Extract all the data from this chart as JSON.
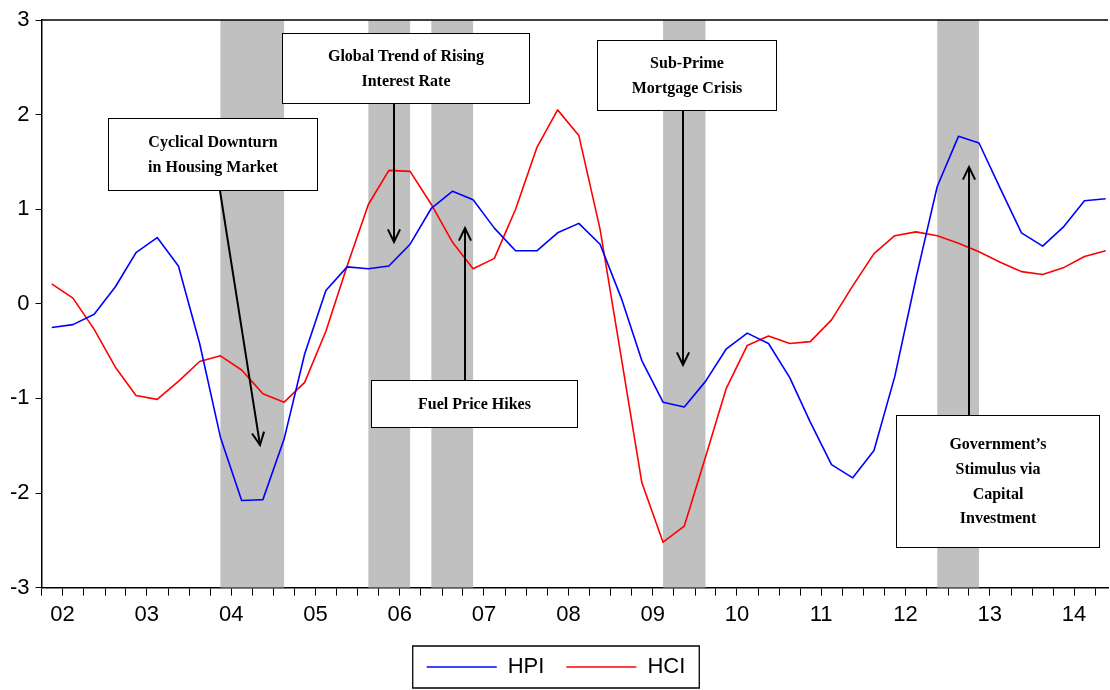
{
  "chart_data": {
    "type": "line",
    "legend": "bottom",
    "grid": false,
    "marker": "none",
    "line_style": "solid",
    "x": [
      "2002-05-15",
      "2002-08-15",
      "2002-11-15",
      "2003-02-15",
      "2003-05-15",
      "2003-08-15",
      "2003-11-15",
      "2004-02-15",
      "2004-05-15",
      "2004-08-15",
      "2004-11-15",
      "2005-02-15",
      "2005-05-15",
      "2005-08-15",
      "2005-11-15",
      "2006-02-15",
      "2006-05-15",
      "2006-08-15",
      "2006-11-15",
      "2007-02-15",
      "2007-05-15",
      "2007-08-15",
      "2007-11-15",
      "2008-02-15",
      "2008-05-15",
      "2008-08-15",
      "2008-11-15",
      "2009-02-15",
      "2009-05-15",
      "2009-08-15",
      "2009-11-15",
      "2010-02-15",
      "2010-05-15",
      "2010-08-15",
      "2010-11-15",
      "2011-02-15",
      "2011-05-15",
      "2011-08-15",
      "2011-11-15",
      "2012-02-15",
      "2012-05-15",
      "2012-08-15",
      "2012-11-15",
      "2013-02-15",
      "2013-05-15",
      "2013-08-15",
      "2013-11-15",
      "2014-02-15",
      "2014-05-15",
      "2014-08-15",
      "2014-11-15"
    ],
    "series": [
      {
        "name": "HPI",
        "color": "#0000ff",
        "values": [
          -0.25,
          -0.22,
          -0.11,
          0.18,
          0.54,
          0.7,
          0.4,
          -0.42,
          -1.41,
          -2.08,
          -2.07,
          -1.43,
          -0.53,
          0.14,
          0.39,
          0.37,
          0.4,
          0.63,
          1.01,
          1.19,
          1.1,
          0.8,
          0.56,
          0.56,
          0.75,
          0.85,
          0.63,
          0.06,
          -0.6,
          -1.04,
          -1.09,
          -0.82,
          -0.48,
          -0.31,
          -0.42,
          -0.78,
          -1.25,
          -1.7,
          -1.84,
          -1.55,
          -0.77,
          0.27,
          1.24,
          1.77,
          1.7,
          1.22,
          0.75,
          0.61,
          0.81,
          1.09,
          1.11
        ]
      },
      {
        "name": "HCI",
        "color": "#ff0000",
        "values": [
          0.21,
          0.06,
          -0.27,
          -0.67,
          -0.97,
          -1.01,
          -0.82,
          -0.61,
          -0.55,
          -0.7,
          -0.95,
          -1.04,
          -0.83,
          -0.29,
          0.4,
          1.05,
          1.41,
          1.4,
          1.05,
          0.65,
          0.37,
          0.48,
          1.0,
          1.65,
          2.05,
          1.78,
          0.79,
          -0.57,
          -1.89,
          -2.52,
          -2.35,
          -1.62,
          -0.9,
          -0.44,
          -0.34,
          -0.42,
          -0.4,
          -0.17,
          0.19,
          0.53,
          0.72,
          0.76,
          0.72,
          0.64,
          0.55,
          0.44,
          0.34,
          0.31,
          0.38,
          0.5,
          0.56
        ]
      }
    ],
    "xlim": [
      "2002-04-01",
      "2014-11-25"
    ],
    "xticks": [
      {
        "value": "2002-04-01",
        "label": null
      },
      {
        "value": "2002-07-01",
        "label": "02"
      },
      {
        "value": "2002-10-01",
        "label": null
      },
      {
        "value": "2003-01-01",
        "label": null
      },
      {
        "value": "2003-04-01",
        "label": null
      },
      {
        "value": "2003-07-01",
        "label": "03"
      },
      {
        "value": "2003-10-01",
        "label": null
      },
      {
        "value": "2004-01-01",
        "label": null
      },
      {
        "value": "2004-04-01",
        "label": null
      },
      {
        "value": "2004-07-01",
        "label": "04"
      },
      {
        "value": "2004-10-01",
        "label": null
      },
      {
        "value": "2005-01-01",
        "label": null
      },
      {
        "value": "2005-04-01",
        "label": null
      },
      {
        "value": "2005-07-01",
        "label": "05"
      },
      {
        "value": "2005-10-01",
        "label": null
      },
      {
        "value": "2006-01-01",
        "label": null
      },
      {
        "value": "2006-04-01",
        "label": null
      },
      {
        "value": "2006-07-01",
        "label": "06"
      },
      {
        "value": "2006-10-01",
        "label": null
      },
      {
        "value": "2007-01-01",
        "label": null
      },
      {
        "value": "2007-04-01",
        "label": null
      },
      {
        "value": "2007-07-01",
        "label": "07"
      },
      {
        "value": "2007-10-01",
        "label": null
      },
      {
        "value": "2008-01-01",
        "label": null
      },
      {
        "value": "2008-04-01",
        "label": null
      },
      {
        "value": "2008-07-01",
        "label": "08"
      },
      {
        "value": "2008-10-01",
        "label": null
      },
      {
        "value": "2009-01-01",
        "label": null
      },
      {
        "value": "2009-04-01",
        "label": null
      },
      {
        "value": "2009-07-01",
        "label": "09"
      },
      {
        "value": "2009-10-01",
        "label": null
      },
      {
        "value": "2010-01-01",
        "label": null
      },
      {
        "value": "2010-04-01",
        "label": null
      },
      {
        "value": "2010-07-01",
        "label": "10"
      },
      {
        "value": "2010-10-01",
        "label": null
      },
      {
        "value": "2011-01-01",
        "label": null
      },
      {
        "value": "2011-04-01",
        "label": null
      },
      {
        "value": "2011-07-01",
        "label": "11"
      },
      {
        "value": "2011-10-01",
        "label": null
      },
      {
        "value": "2012-01-01",
        "label": null
      },
      {
        "value": "2012-04-01",
        "label": null
      },
      {
        "value": "2012-07-01",
        "label": "12"
      },
      {
        "value": "2012-10-01",
        "label": null
      },
      {
        "value": "2013-01-01",
        "label": null
      },
      {
        "value": "2013-04-01",
        "label": null
      },
      {
        "value": "2013-07-01",
        "label": "13"
      },
      {
        "value": "2013-10-01",
        "label": null
      },
      {
        "value": "2014-01-01",
        "label": null
      },
      {
        "value": "2014-04-01",
        "label": null
      },
      {
        "value": "2014-07-01",
        "label": "14"
      },
      {
        "value": "2014-10-01",
        "label": null
      }
    ],
    "ylim": [
      -3,
      3
    ],
    "yticks": [
      -3,
      -2,
      -1,
      0,
      1,
      2,
      3
    ],
    "bands": [
      {
        "axis": "x",
        "from": "2004-05-15",
        "to": "2005-02-15",
        "color": "#c0c0c0"
      },
      {
        "axis": "x",
        "from": "2006-02-15",
        "to": "2006-08-15",
        "color": "#c0c0c0"
      },
      {
        "axis": "x",
        "from": "2006-11-15",
        "to": "2007-05-15",
        "color": "#c0c0c0"
      },
      {
        "axis": "x",
        "from": "2009-08-15",
        "to": "2010-02-15",
        "color": "#c0c0c0"
      },
      {
        "axis": "x",
        "from": "2012-11-15",
        "to": "2013-05-15",
        "color": "#c0c0c0"
      }
    ],
    "annotations": [
      "Cyclical Downturn in Housing Market",
      "Global Trend of Rising Interest Rate",
      "Fuel Price Hikes",
      "Sub-Prime Mortgage Crisis",
      "Government’s Stimulus via Capital Investment"
    ]
  }
}
